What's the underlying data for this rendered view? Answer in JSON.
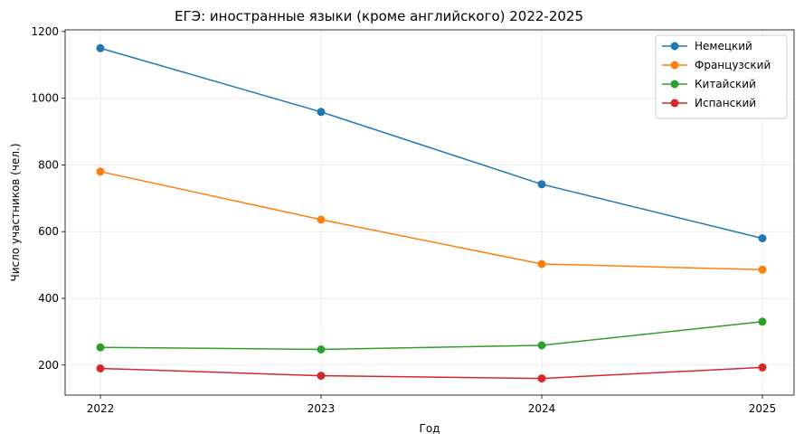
{
  "chart_data": {
    "type": "line",
    "title": "ЕГЭ: иностранные языки (кроме английского) 2022-2025",
    "xlabel": "Год",
    "ylabel": "Число участников (чел.)",
    "x": [
      "2022",
      "2023",
      "2024",
      "2025"
    ],
    "ylim": [
      110,
      1205
    ],
    "yticks": [
      200,
      400,
      600,
      800,
      1000,
      1200
    ],
    "grid": true,
    "legend_position": "top-right",
    "series": [
      {
        "name": "Немецкий",
        "color": "#1f77b4",
        "values": [
          1150,
          959,
          742,
          580
        ]
      },
      {
        "name": "Французский",
        "color": "#ff7f0e",
        "values": [
          780,
          636,
          503,
          486
        ]
      },
      {
        "name": "Китайский",
        "color": "#2ca02c",
        "values": [
          253,
          247,
          259,
          330
        ]
      },
      {
        "name": "Испанский",
        "color": "#d62728",
        "values": [
          190,
          168,
          160,
          193
        ]
      }
    ]
  }
}
